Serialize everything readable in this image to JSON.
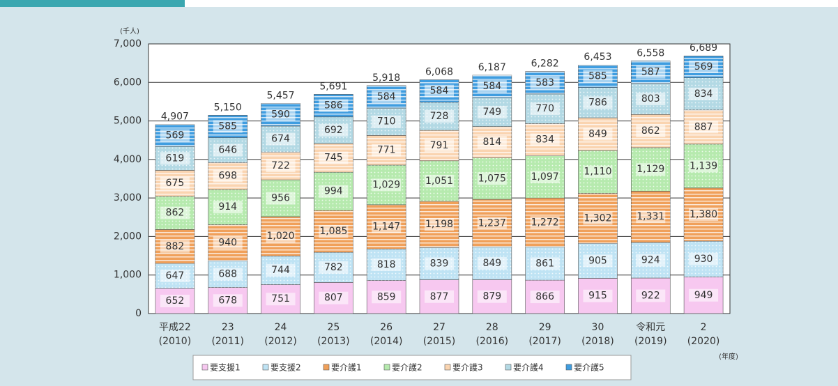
{
  "chart_data": {
    "type": "stacked_bar",
    "y_unit": "(千人)",
    "x_unit": "(年度)",
    "categories": [
      [
        "平成22",
        "(2010)"
      ],
      [
        "23",
        "(2011)"
      ],
      [
        "24",
        "(2012)"
      ],
      [
        "25",
        "(2013)"
      ],
      [
        "26",
        "(2014)"
      ],
      [
        "27",
        "(2015)"
      ],
      [
        "28",
        "(2016)"
      ],
      [
        "29",
        "(2017)"
      ],
      [
        "30",
        "(2018)"
      ],
      [
        "令和元",
        "(2019)"
      ],
      [
        "2",
        "(2020)"
      ]
    ],
    "ylim": [
      0,
      7000
    ],
    "yticks": [
      0,
      {
        "value": 1000,
        "label": "1,000"
      },
      {
        "value": 2000,
        "label": "2,000"
      },
      {
        "value": 3000,
        "label": "3,000"
      },
      {
        "value": 4000,
        "label": "4,000"
      },
      {
        "value": 5000,
        "label": "5,000"
      },
      {
        "value": 6000,
        "label": "6,000"
      },
      {
        "value": 7000,
        "label": "7,000"
      }
    ],
    "grid": true,
    "series": [
      {
        "name": "要支援1",
        "color": "#f7c8f0",
        "pattern": "none",
        "values": [
          652,
          678,
          751,
          807,
          859,
          877,
          879,
          866,
          915,
          922,
          949
        ]
      },
      {
        "name": "要支援2",
        "color": "#bfe3f4",
        "pattern": "dots",
        "values": [
          647,
          688,
          744,
          782,
          818,
          839,
          849,
          861,
          905,
          924,
          930
        ]
      },
      {
        "name": "要介護1",
        "color": "#f0a05a",
        "pattern": "stripes",
        "values": [
          882,
          940,
          1020,
          1085,
          1147,
          1198,
          1237,
          1272,
          1302,
          1331,
          1380
        ],
        "value_labels": [
          "882",
          "940",
          "1,020",
          "1,085",
          "1,147",
          "1,198",
          "1,237",
          "1,272",
          "1,302",
          "1,331",
          "1,380"
        ]
      },
      {
        "name": "要介護2",
        "color": "#b6eaae",
        "pattern": "dots",
        "values": [
          862,
          914,
          956,
          994,
          1029,
          1051,
          1075,
          1097,
          1110,
          1129,
          1139
        ],
        "value_labels": [
          "862",
          "914",
          "956",
          "994",
          "1,029",
          "1,051",
          "1,075",
          "1,097",
          "1,110",
          "1,129",
          "1,139"
        ]
      },
      {
        "name": "要介護3",
        "color": "#fad4b0",
        "pattern": "stripes",
        "values": [
          675,
          698,
          722,
          745,
          771,
          791,
          814,
          834,
          849,
          862,
          887
        ]
      },
      {
        "name": "要介護4",
        "color": "#b3d9e4",
        "pattern": "dots",
        "values": [
          619,
          646,
          674,
          692,
          710,
          728,
          749,
          770,
          786,
          803,
          834
        ]
      },
      {
        "name": "要介護5",
        "color": "#3f9de0",
        "pattern": "stripes",
        "values": [
          569,
          585,
          590,
          586,
          584,
          584,
          584,
          583,
          585,
          587,
          569
        ]
      }
    ],
    "totals": [
      4907,
      5150,
      5457,
      5691,
      5918,
      6068,
      6187,
      6282,
      6453,
      6558,
      6689
    ],
    "total_labels": [
      "4,907",
      "5,150",
      "5,457",
      "5,691",
      "5,918",
      "6,068",
      "6,187",
      "6,282",
      "6,453",
      "6,558",
      "6,689"
    ]
  }
}
